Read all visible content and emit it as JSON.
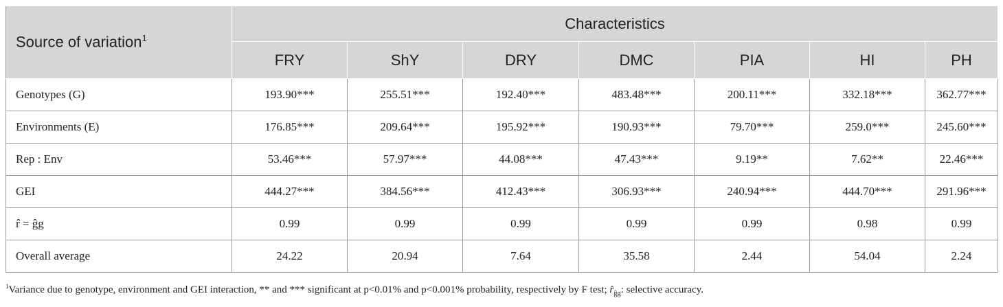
{
  "table": {
    "header": {
      "row_label": "Source of variation",
      "row_label_note": "1",
      "group": "Characteristics",
      "columns": [
        "FRY",
        "ShY",
        "DRY",
        "DMC",
        "PIA",
        "HI",
        "PH"
      ]
    },
    "rows": [
      {
        "label": "Genotypes (G)",
        "values": [
          "193.90***",
          "255.51***",
          "192.40***",
          "483.48***",
          "200.11***",
          "332.18***",
          "362.77***"
        ]
      },
      {
        "label": "Environments (E)",
        "values": [
          "176.85***",
          "209.64***",
          "195.92***",
          "190.93***",
          "79.70***",
          "259.0***",
          "245.60***"
        ]
      },
      {
        "label": "Rep : Env",
        "values": [
          "53.46***",
          "57.97***",
          "44.08***",
          "47.43***",
          "9.19**",
          "7.62**",
          "22.46***"
        ]
      },
      {
        "label": "GEI",
        "values": [
          "444.27***",
          "384.56***",
          "412.43***",
          "306.93***",
          "240.94***",
          "444.70***",
          "291.96***"
        ]
      },
      {
        "label": "r̂ = ĝg",
        "values": [
          "0.99",
          "0.99",
          "0.99",
          "0.99",
          "0.99",
          "0.98",
          "0.99"
        ]
      },
      {
        "label": "Overall average",
        "values": [
          "24.22",
          "20.94",
          "7.64",
          "35.58",
          "2.44",
          "54.04",
          "2.24"
        ]
      }
    ],
    "footnote": {
      "marker": "1",
      "text": "Variance due to genotype, environment and GEI interaction, ** and *** significant at p<0.01% and p<0.001% probability, respectively by F test; ",
      "symbol": "r̂",
      "symbol_sub": "ĝg",
      "tail": ": selective accuracy."
    }
  }
}
